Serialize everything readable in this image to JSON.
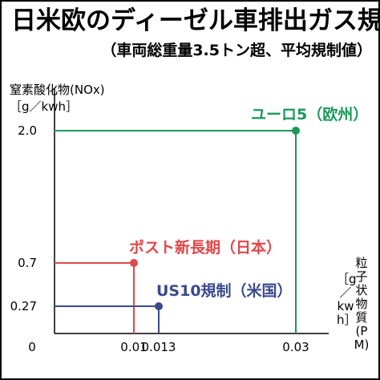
{
  "title": "日米欧のディーゼル車排出ガス規制値",
  "subtitle": "（車両総重量3.5トン超、平均規制値）",
  "colors": {
    "eu": "#1a9a5a",
    "japan": "#e0484a",
    "us": "#3a4a8c",
    "axis": "#000000"
  },
  "chart_data": {
    "type": "scatter",
    "title": "日米欧のディーゼル車排出ガス規制値",
    "subtitle": "（車両総重量3.5トン超、平均規制値）",
    "ylabel": "窒素酸化物(NOx)",
    "yunit": "［g／kwh］",
    "xlabel": "粒子状物質(PM)",
    "xunit": "［g／kwh］",
    "origin_label": "0",
    "x_ticks": [
      {
        "value": 0.01,
        "label": "0.01"
      },
      {
        "value": 0.013,
        "label": "0.013"
      },
      {
        "value": 0.03,
        "label": "0.03"
      }
    ],
    "y_ticks": [
      {
        "value": 0.27,
        "label": "0.27"
      },
      {
        "value": 0.7,
        "label": "0.7"
      },
      {
        "value": 2.0,
        "label": "2.0"
      }
    ],
    "points": [
      {
        "name": "ユーロ5（欧州）",
        "x": 0.03,
        "y": 2.0,
        "color": "#1a9a5a"
      },
      {
        "name": "ポスト新長期（日本）",
        "x": 0.01,
        "y": 0.7,
        "color": "#e0484a"
      },
      {
        "name": "US10規制（米国）",
        "x": 0.013,
        "y": 0.27,
        "color": "#3a4a8c"
      }
    ],
    "grid": false
  }
}
